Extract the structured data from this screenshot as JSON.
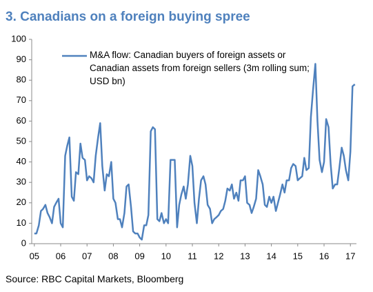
{
  "chart_data": {
    "type": "line",
    "title": "3. Canadians on a foreign buying spree",
    "source": "Source: RBC Capital Markets, Bloomberg",
    "xlim": [
      2004.9,
      2017.23
    ],
    "xticks": [
      {
        "value": 2005,
        "label": "05"
      },
      {
        "value": 2006,
        "label": "06"
      },
      {
        "value": 2007,
        "label": "07"
      },
      {
        "value": 2008,
        "label": "08"
      },
      {
        "value": 2009,
        "label": "09"
      },
      {
        "value": 2010,
        "label": "10"
      },
      {
        "value": 2011,
        "label": "11"
      },
      {
        "value": 2012,
        "label": "12"
      },
      {
        "value": 2013,
        "label": "13"
      },
      {
        "value": 2014,
        "label": "14"
      },
      {
        "value": 2015,
        "label": "15"
      },
      {
        "value": 2016,
        "label": "16"
      },
      {
        "value": 2017,
        "label": "17"
      }
    ],
    "ylim": [
      0,
      100
    ],
    "yticks": [
      0,
      10,
      20,
      30,
      40,
      50,
      60,
      70,
      80,
      90,
      100
    ],
    "grid": false,
    "x": [
      2005.0,
      2005.08,
      2005.17,
      2005.25,
      2005.33,
      2005.42,
      2005.5,
      2005.58,
      2005.67,
      2005.75,
      2005.83,
      2005.92,
      2006.0,
      2006.08,
      2006.17,
      2006.25,
      2006.33,
      2006.42,
      2006.5,
      2006.58,
      2006.67,
      2006.75,
      2006.83,
      2006.92,
      2007.0,
      2007.08,
      2007.17,
      2007.25,
      2007.33,
      2007.42,
      2007.5,
      2007.58,
      2007.67,
      2007.75,
      2007.83,
      2007.92,
      2008.0,
      2008.08,
      2008.17,
      2008.25,
      2008.33,
      2008.42,
      2008.5,
      2008.58,
      2008.67,
      2008.75,
      2008.83,
      2008.92,
      2009.0,
      2009.08,
      2009.17,
      2009.25,
      2009.33,
      2009.42,
      2009.5,
      2009.58,
      2009.67,
      2009.75,
      2009.83,
      2009.92,
      2010.0,
      2010.08,
      2010.17,
      2010.25,
      2010.33,
      2010.42,
      2010.5,
      2010.58,
      2010.67,
      2010.75,
      2010.83,
      2010.92,
      2011.0,
      2011.08,
      2011.17,
      2011.25,
      2011.33,
      2011.42,
      2011.5,
      2011.58,
      2011.67,
      2011.75,
      2011.83,
      2011.92,
      2012.0,
      2012.08,
      2012.17,
      2012.25,
      2012.33,
      2012.42,
      2012.5,
      2012.58,
      2012.67,
      2012.75,
      2012.83,
      2012.92,
      2013.0,
      2013.08,
      2013.17,
      2013.25,
      2013.33,
      2013.42,
      2013.5,
      2013.58,
      2013.67,
      2013.75,
      2013.83,
      2013.92,
      2014.0,
      2014.08,
      2014.17,
      2014.25,
      2014.33,
      2014.42,
      2014.5,
      2014.58,
      2014.67,
      2014.75,
      2014.83,
      2014.92,
      2015.0,
      2015.08,
      2015.17,
      2015.25,
      2015.33,
      2015.42,
      2015.5,
      2015.58,
      2015.67,
      2015.75,
      2015.83,
      2015.92,
      2016.0,
      2016.08,
      2016.17,
      2016.25,
      2016.33,
      2016.42,
      2016.5,
      2016.58,
      2016.67,
      2016.75,
      2016.83,
      2016.92,
      2017.0,
      2017.08,
      2017.17
    ],
    "series": [
      {
        "name": "M&A flow: Canadian buyers of foreign assets or Canadian assets from foreign sellers (3m rolling sum; USD bn)",
        "color": "#4f81bd",
        "values": [
          5,
          5,
          9,
          16,
          17,
          19,
          15,
          13,
          10,
          18,
          20,
          22,
          10,
          8,
          43,
          48,
          52,
          23,
          21,
          35,
          34,
          49,
          42,
          41,
          31,
          33,
          32,
          30,
          43,
          52,
          59,
          38,
          26,
          34,
          33,
          40,
          22,
          20,
          12,
          12,
          8,
          15,
          28,
          29,
          18,
          6,
          5,
          5,
          3,
          2,
          9,
          9,
          14,
          55,
          57,
          56,
          12,
          11,
          15,
          10,
          12,
          10,
          41,
          41,
          41,
          8,
          19,
          24,
          28,
          22,
          29,
          43,
          38,
          20,
          10,
          22,
          31,
          33,
          29,
          19,
          17,
          10,
          12,
          13,
          14,
          16,
          17,
          21,
          27,
          26,
          29,
          22,
          25,
          21,
          31,
          31,
          33,
          20,
          19,
          15,
          18,
          22,
          36,
          33,
          29,
          19,
          18,
          23,
          20,
          23,
          16,
          20,
          24,
          29,
          25,
          31,
          31,
          37,
          39,
          38,
          31,
          32,
          33,
          42,
          36,
          37,
          62,
          75,
          88,
          60,
          41,
          35,
          40,
          61,
          57,
          39,
          27,
          29,
          29,
          37,
          47,
          43,
          36,
          31,
          45,
          77,
          78
        ]
      }
    ]
  }
}
